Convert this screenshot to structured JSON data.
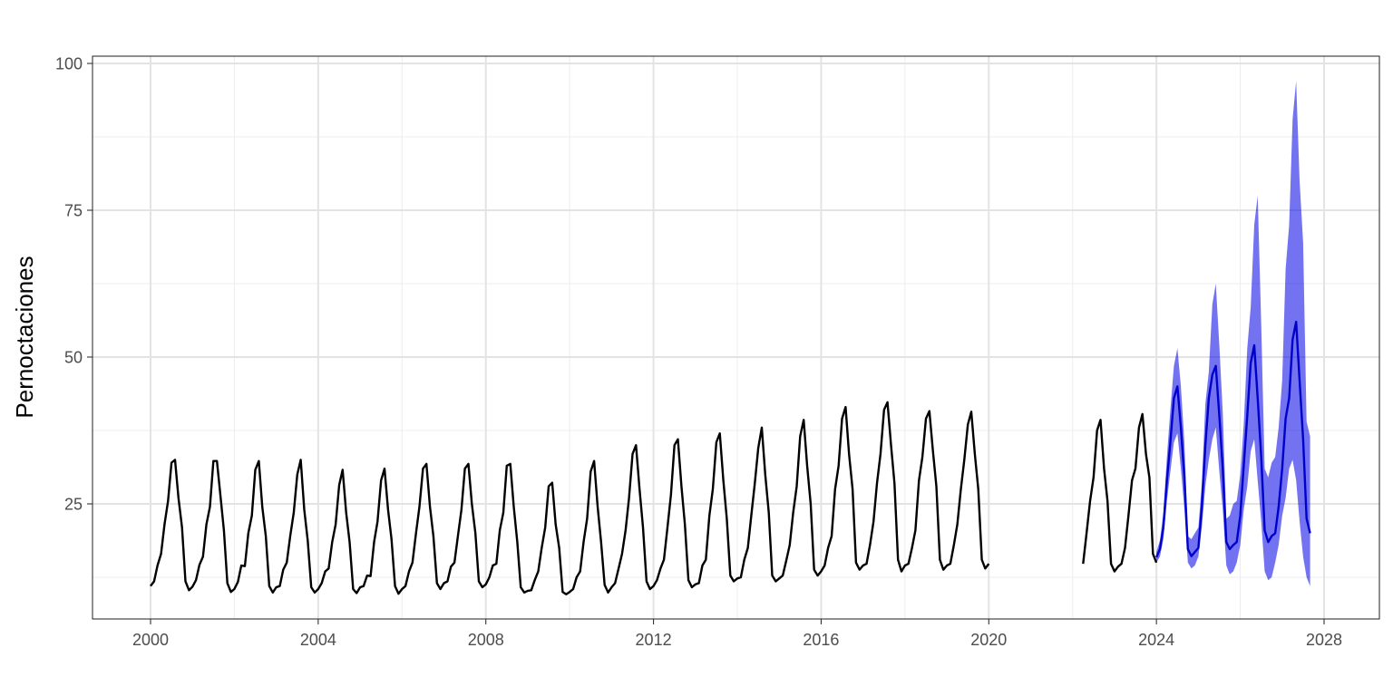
{
  "chart_data": {
    "type": "line",
    "title": "",
    "xlabel": "",
    "ylabel": "Pernoctaciones",
    "xlim": [
      2000,
      2028
    ],
    "ylim": [
      5,
      101
    ],
    "x_ticks": [
      2000,
      2004,
      2008,
      2012,
      2016,
      2020,
      2024,
      2028
    ],
    "x_tick_labels": [
      "2000",
      "2004",
      "2008",
      "2012",
      "2016",
      "2020",
      "2024",
      "2028"
    ],
    "y_ticks": [
      25,
      50,
      75,
      100
    ],
    "y_tick_labels": [
      "25",
      "50",
      "75",
      "100"
    ],
    "grid": true,
    "legend": "none",
    "series": [
      {
        "kind": "line",
        "color": "#000000",
        "year_profiles": [
          {
            "year": 2000,
            "values": [
              11.0,
              11.8,
              14.5,
              16.5,
              21.5,
              25.5,
              32.0,
              32.5,
              26.0,
              21.0,
              11.8,
              10.3
            ]
          },
          {
            "year": 2001,
            "values": [
              10.9,
              12.0,
              14.6,
              16.0,
              21.5,
              24.5,
              32.3,
              32.3,
              26.5,
              20.5,
              11.5,
              10.0
            ]
          },
          {
            "year": 2002,
            "values": [
              10.5,
              11.7,
              14.5,
              14.4,
              20.0,
              23.0,
              30.8,
              32.3,
              24.5,
              19.5,
              11.0,
              9.9
            ]
          },
          {
            "year": 2003,
            "values": [
              10.8,
              11.0,
              13.8,
              15.0,
              19.5,
              23.5,
              30.0,
              32.5,
              24.0,
              18.8,
              10.8,
              9.9
            ]
          },
          {
            "year": 2004,
            "values": [
              10.5,
              11.5,
              13.5,
              14.0,
              18.5,
              21.5,
              28.2,
              30.8,
              23.5,
              18.5,
              10.5,
              9.8
            ]
          },
          {
            "year": 2005,
            "values": [
              10.8,
              11.0,
              12.8,
              12.7,
              18.5,
              22.0,
              29.0,
              31.0,
              24.0,
              19.0,
              11.0,
              9.7
            ]
          },
          {
            "year": 2006,
            "values": [
              10.5,
              11.0,
              13.5,
              15.0,
              20.0,
              24.5,
              31.0,
              31.8,
              24.5,
              19.5,
              11.5,
              10.5
            ]
          },
          {
            "year": 2007,
            "values": [
              11.5,
              11.8,
              14.3,
              15.0,
              19.5,
              24.0,
              31.0,
              31.8,
              25.0,
              20.0,
              11.8,
              10.8
            ]
          },
          {
            "year": 2008,
            "values": [
              11.3,
              12.5,
              14.5,
              14.8,
              20.5,
              23.5,
              31.5,
              31.8,
              24.5,
              18.5,
              10.8,
              9.9
            ]
          },
          {
            "year": 2009,
            "values": [
              10.2,
              10.3,
              12.0,
              13.5,
              17.5,
              21.0,
              28.0,
              28.6,
              21.5,
              17.5,
              10.0,
              9.6
            ]
          },
          {
            "year": 2010,
            "values": [
              10.0,
              10.5,
              12.5,
              13.5,
              18.5,
              22.5,
              30.5,
              32.3,
              24.5,
              18.5,
              11.2,
              9.9
            ]
          },
          {
            "year": 2011,
            "values": [
              10.8,
              11.5,
              14.0,
              16.5,
              20.5,
              26.0,
              33.5,
              35.0,
              27.5,
              21.0,
              11.8,
              10.5
            ]
          },
          {
            "year": 2012,
            "values": [
              11.0,
              12.0,
              14.0,
              15.5,
              21.0,
              26.5,
              35.0,
              36.0,
              28.0,
              21.5,
              12.0,
              10.8
            ]
          },
          {
            "year": 2013,
            "values": [
              11.3,
              11.5,
              14.5,
              15.5,
              23.0,
              27.5,
              35.5,
              37.0,
              29.0,
              22.5,
              12.8,
              11.8
            ]
          },
          {
            "year": 2014,
            "values": [
              12.3,
              12.5,
              15.5,
              17.5,
              23.0,
              28.5,
              34.5,
              38.0,
              30.0,
              23.5,
              12.8,
              11.8
            ]
          },
          {
            "year": 2015,
            "values": [
              12.3,
              12.8,
              15.3,
              18.0,
              23.5,
              28.0,
              36.5,
              39.3,
              31.5,
              25.0,
              13.8,
              12.8
            ]
          },
          {
            "year": 2016,
            "values": [
              13.5,
              14.5,
              17.5,
              19.5,
              27.5,
              31.5,
              39.5,
              41.5,
              33.5,
              27.5,
              15.0,
              13.8
            ]
          },
          {
            "year": 2017,
            "values": [
              14.5,
              14.8,
              18.0,
              22.0,
              28.5,
              33.5,
              41.0,
              42.3,
              35.0,
              28.5,
              15.5,
              13.5
            ]
          },
          {
            "year": 2018,
            "values": [
              14.5,
              14.8,
              17.5,
              20.5,
              29.0,
              33.0,
              39.5,
              40.8,
              34.0,
              28.0,
              15.5,
              13.8
            ]
          },
          {
            "year": 2019,
            "values": [
              14.5,
              14.8,
              18.0,
              21.5,
              27.5,
              32.5,
              38.5,
              40.7,
              33.5,
              27.5,
              15.5,
              14.0
            ]
          },
          {
            "year": 2020,
            "values": [
              14.8
            ]
          },
          {
            "year": 2022,
            "values": [
              null,
              null,
              null,
              14.8,
              20.0,
              25.5,
              29.5,
              37.5,
              39.3,
              31.0,
              25.5,
              14.8
            ]
          },
          {
            "year": 2023,
            "values": [
              13.5,
              14.3,
              14.8,
              17.5,
              23.0,
              29.0,
              31.0,
              38.0,
              40.3,
              33.5,
              29.5,
              16.5
            ]
          },
          {
            "year": 2024,
            "values": [
              15.0
            ]
          }
        ]
      },
      {
        "kind": "line",
        "color": "#0000cc",
        "band_color": "#0000e6",
        "band_opacity": 0.55,
        "start_year": 2024,
        "year_profiles": [
          {
            "year": 2024,
            "values": [
              15.9,
              17.3,
              21.0,
              29.0,
              35.5,
              43.0,
              45.0,
              38.0,
              29.5,
              17.3,
              16.1,
              16.8
            ]
          },
          {
            "year": 2025,
            "values": [
              17.5,
              24.5,
              35.0,
              43.0,
              47.0,
              48.5,
              40.0,
              31.0,
              18.5,
              17.3,
              18.0,
              18.5
            ]
          },
          {
            "year": 2026,
            "values": [
              23.0,
              31.5,
              40.0,
              49.0,
              52.0,
              43.0,
              33.0,
              20.5,
              18.5,
              19.5,
              20.0,
              24.5
            ]
          },
          {
            "year": 2027,
            "values": [
              31.0,
              39.5,
              43.0,
              53.0,
              56.0,
              46.0,
              36.0,
              22.5,
              20.0
            ]
          }
        ],
        "lower_profiles": [
          {
            "year": 2024,
            "values": [
              15.0,
              16.0,
              19.0,
              25.5,
              30.5,
              35.5,
              37.0,
              31.0,
              24.0,
              15.0,
              14.0,
              14.5
            ]
          },
          {
            "year": 2025,
            "values": [
              16.0,
              21.0,
              28.0,
              32.5,
              36.0,
              38.0,
              30.5,
              24.0,
              14.5,
              13.0,
              13.5,
              15.0
            ]
          },
          {
            "year": 2026,
            "values": [
              18.0,
              24.0,
              28.0,
              34.0,
              36.0,
              29.0,
              22.0,
              13.5,
              12.0,
              12.5,
              15.0,
              18.0
            ]
          },
          {
            "year": 2027,
            "values": [
              23.0,
              26.0,
              31.0,
              32.5,
              29.0,
              22.0,
              16.0,
              12.5,
              11.0
            ]
          }
        ],
        "upper_profiles": [
          {
            "year": 2024,
            "values": [
              16.8,
              18.8,
              23.5,
              33.0,
              41.0,
              48.5,
              51.5,
              45.0,
              35.5,
              19.5,
              19.0,
              20.0
            ]
          },
          {
            "year": 2025,
            "values": [
              21.0,
              28.5,
              42.0,
              47.5,
              59.0,
              62.5,
              52.0,
              40.5,
              22.5,
              23.0,
              25.0,
              25.5
            ]
          },
          {
            "year": 2026,
            "values": [
              30.0,
              38.5,
              51.5,
              58.5,
              72.5,
              77.5,
              55.5,
              31.0,
              29.5,
              32.0,
              33.0,
              38.0
            ]
          },
          {
            "year": 2027,
            "values": [
              46.0,
              65.0,
              72.5,
              90.5,
              97.0,
              80.0,
              69.5,
              39.0,
              36.5
            ]
          }
        ]
      }
    ]
  }
}
